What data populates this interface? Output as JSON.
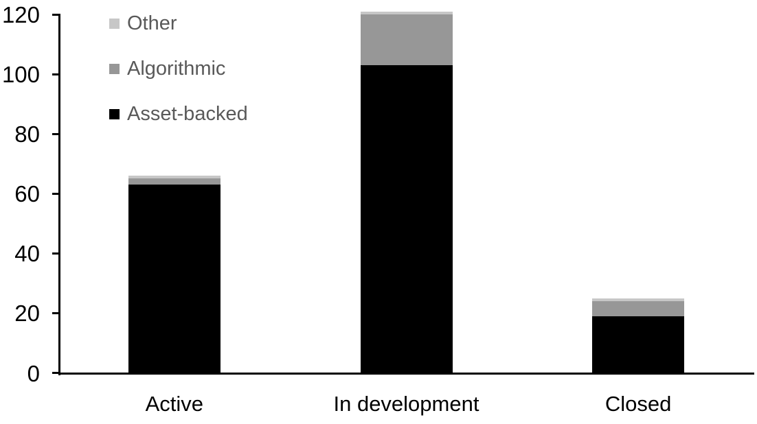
{
  "chart_data": {
    "type": "bar",
    "stacked": true,
    "title": "",
    "xlabel": "",
    "ylabel": "",
    "categories": [
      "Active",
      "In development",
      "Closed"
    ],
    "series": [
      {
        "name": "Asset-backed",
        "color": "#000000",
        "values": [
          63,
          103,
          19
        ]
      },
      {
        "name": "Algorithmic",
        "color": "#979797",
        "values": [
          2,
          17,
          5
        ]
      },
      {
        "name": "Other",
        "color": "#c7c7c7",
        "values": [
          1,
          1,
          1
        ]
      }
    ],
    "totals": [
      66,
      121,
      25
    ],
    "legend": [
      {
        "label": "Other",
        "color": "#c7c7c7"
      },
      {
        "label": "Algorithmic",
        "color": "#979797"
      },
      {
        "label": "Asset-backed",
        "color": "#000000"
      }
    ],
    "legend_position": "top-left",
    "ylim": [
      0,
      120
    ],
    "yticks": [
      "0",
      "20",
      "40",
      "60",
      "80",
      "100",
      "120"
    ],
    "grid": false
  },
  "styles": {
    "background": "#ffffff",
    "axis_color": "#000000",
    "tick_label_color": "#000000",
    "category_label_color": "#000000",
    "legend_text_color": "#595959"
  }
}
